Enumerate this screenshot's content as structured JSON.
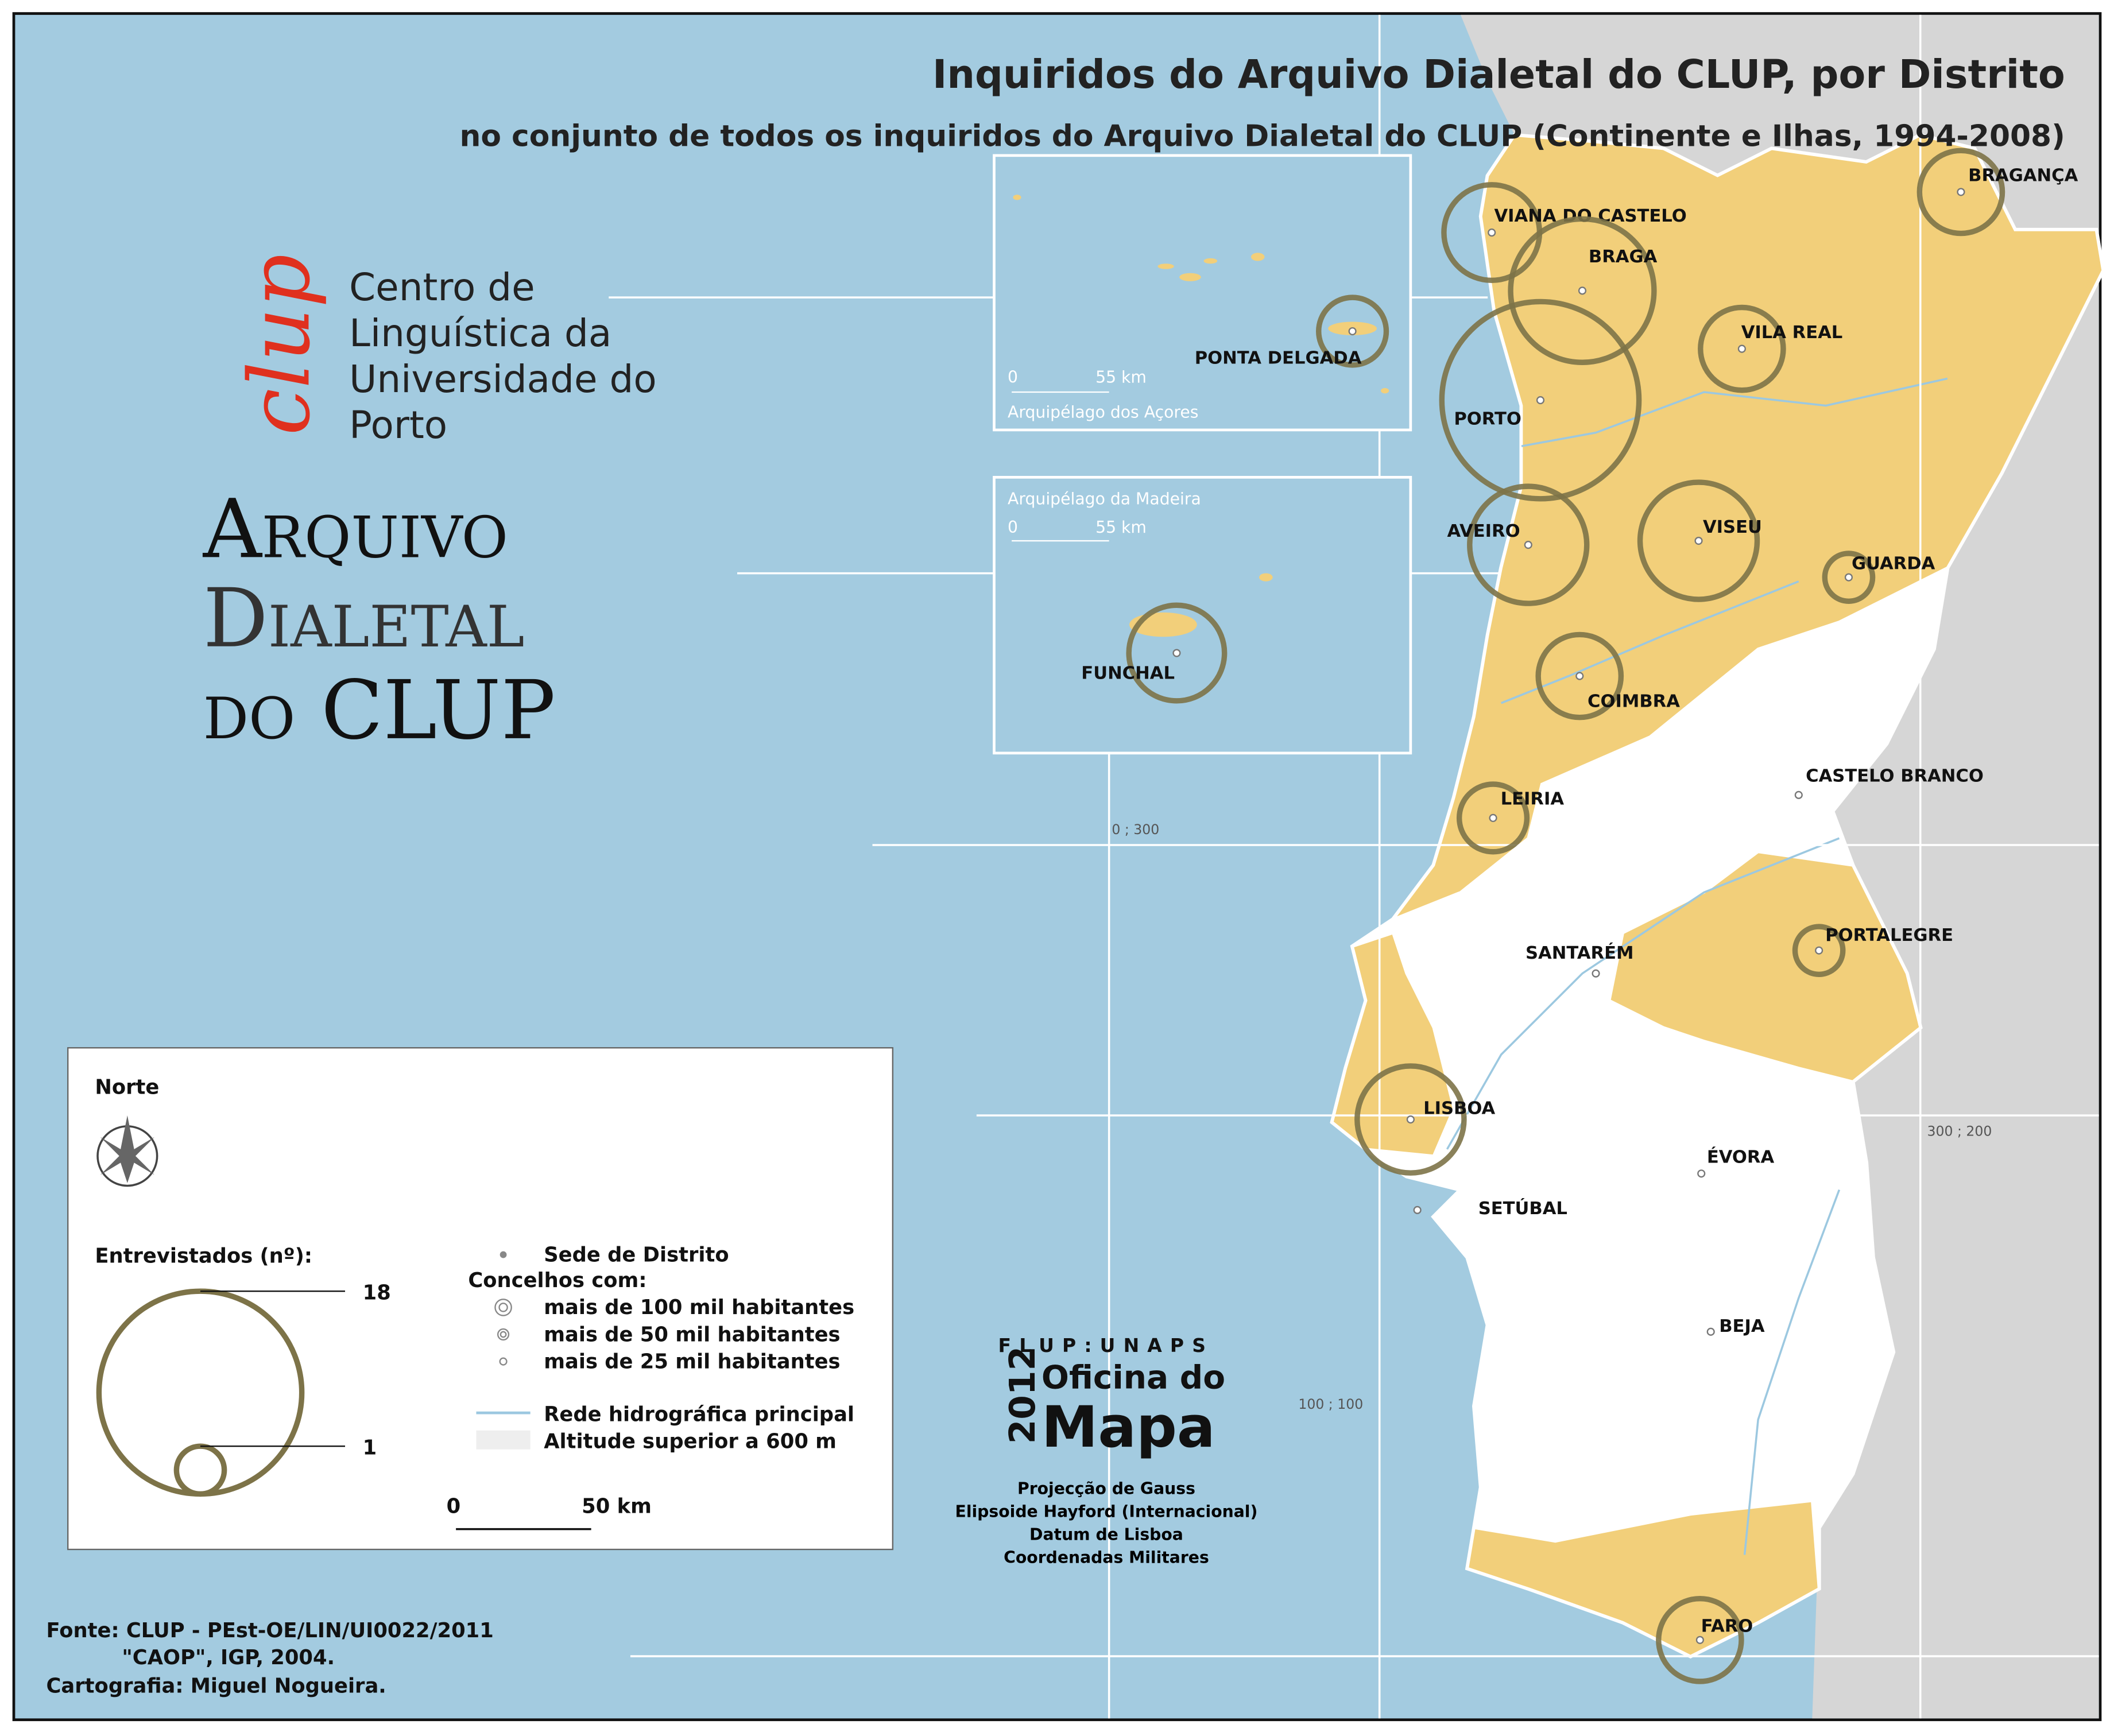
{
  "title": "Inquiridos do Arquivo Dialetal do CLUP, por Distrito",
  "subtitle": "no conjunto de todos os inquiridos do Arquivo Dialetal do CLUP (Continente e Ilhas, 1994-2008)",
  "logo": {
    "mark": "clup",
    "lines": [
      "Centro de",
      "Linguística da",
      "Universidade do",
      "Porto"
    ]
  },
  "archive": [
    "Arquivo",
    "Dialetal",
    "do CLUP"
  ],
  "insets": [
    {
      "name": "Arquipélago dos Açores",
      "scale": [
        "0",
        "55 km"
      ]
    },
    {
      "name": "Arquipélago da Madeira",
      "scale": [
        "0",
        "55 km"
      ]
    }
  ],
  "grid_labels": [
    "0 ; 300",
    "300 ; 200",
    "100 ; 100"
  ],
  "districts": [
    {
      "name": "VIANA DO CASTELO",
      "value": 4
    },
    {
      "name": "BRAGA",
      "value": 9
    },
    {
      "name": "BRAGANÇA",
      "value": 3
    },
    {
      "name": "VILA REAL",
      "value": 3
    },
    {
      "name": "PORTO",
      "value": 17
    },
    {
      "name": "AVEIRO",
      "value": 6
    },
    {
      "name": "VISEU",
      "value": 6
    },
    {
      "name": "GUARDA",
      "value": 1
    },
    {
      "name": "COIMBRA",
      "value": 3
    },
    {
      "name": "LEIRIA",
      "value": 2
    },
    {
      "name": "CASTELO BRANCO",
      "value": 0
    },
    {
      "name": "SANTARÉM",
      "value": 0
    },
    {
      "name": "PORTALEGRE",
      "value": 1
    },
    {
      "name": "LISBOA",
      "value": 5
    },
    {
      "name": "ÉVORA",
      "value": 0
    },
    {
      "name": "SETÚBAL",
      "value": 0
    },
    {
      "name": "BEJA",
      "value": 0
    },
    {
      "name": "FARO",
      "value": 3
    },
    {
      "name": "PONTA DELGADA",
      "value": 2
    },
    {
      "name": "FUNCHAL",
      "value": 4
    }
  ],
  "legend": {
    "north": "Norte",
    "size_title": "Entrevistados (nº):",
    "size_ticks": [
      18,
      1
    ],
    "symbols": [
      "Sede de Distrito",
      "Concelhos com:",
      "mais de 100 mil habitantes",
      "mais de 50 mil habitantes",
      "mais de 25 mil habitantes",
      "Rede hidrográfica principal",
      "Altitude superior a 600 m"
    ],
    "scale": [
      "0",
      "50 km"
    ]
  },
  "credits": {
    "unit": "FLUP:UNAPS",
    "year": "2012",
    "office": "Oficina do",
    "map": "Mapa",
    "projection": [
      "Projecção de Gauss",
      "Elipsoide Hayford (Internacional)",
      "Datum de Lisboa",
      "Coordenadas Militares"
    ]
  },
  "sources": [
    "Fonte: CLUP - PEst-OE/LIN/UI0022/2011",
    "\"CAOP\", IGP, 2004.",
    "Cartografia: Miguel Nogueira."
  ]
}
